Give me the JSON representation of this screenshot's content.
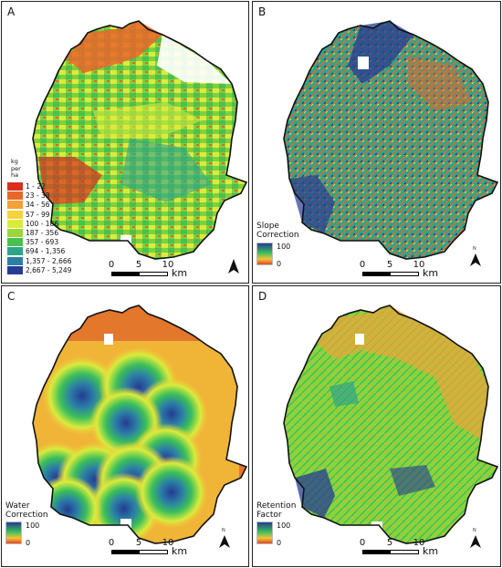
{
  "panels": [
    {
      "id": "A",
      "label": "A"
    },
    {
      "id": "B",
      "label": "B",
      "legend": {
        "title": [
          "Slope",
          "Correction"
        ],
        "max": "100",
        "min": "0"
      }
    },
    {
      "id": "C",
      "label": "C",
      "legend": {
        "title": [
          "Water",
          "Correction"
        ],
        "max": "100",
        "min": "0"
      }
    },
    {
      "id": "D",
      "label": "D",
      "legend": {
        "title": [
          "Retention",
          "Factor"
        ],
        "max": "100",
        "min": "0"
      }
    }
  ],
  "panel_a_legend": {
    "unit": [
      "kg",
      "per",
      "ha"
    ],
    "classes": [
      {
        "label": "1 - 22",
        "color": "#d7301f"
      },
      {
        "label": "23 - 33",
        "color": "#e8662a"
      },
      {
        "label": "34 - 56",
        "color": "#f2a03a"
      },
      {
        "label": "57 - 99",
        "color": "#f6d23f"
      },
      {
        "label": "100 - 186",
        "color": "#d9ec3c"
      },
      {
        "label": "187 - 356",
        "color": "#9bd63b"
      },
      {
        "label": "357 - 693",
        "color": "#4cc04d"
      },
      {
        "label": "694 - 1,356",
        "color": "#2fa58a"
      },
      {
        "label": "1,357 - 2,666",
        "color": "#2b7fa6"
      },
      {
        "label": "2,667 - 5,249",
        "color": "#253c93"
      }
    ]
  },
  "scale_bar": {
    "ticks": [
      "0",
      "5",
      "10"
    ],
    "unit": "km"
  },
  "north_arrow": {
    "label": "N"
  },
  "ramp_colors": {
    "top": "#253c93",
    "mid": "#3bbf5a",
    "low": "#f2c33b",
    "bottom": "#e0491e"
  }
}
